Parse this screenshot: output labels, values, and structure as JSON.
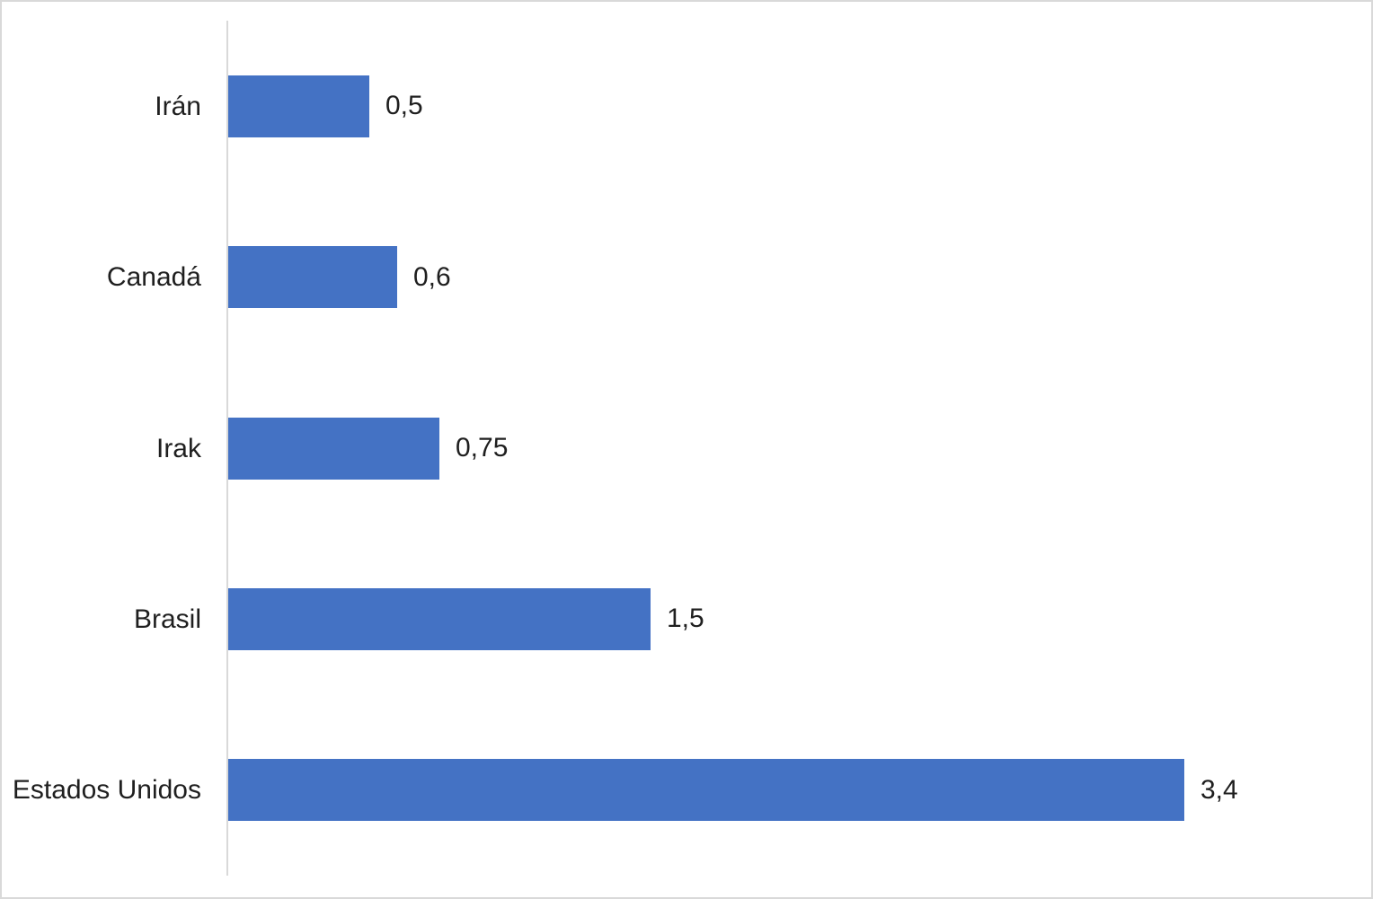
{
  "chart_data": {
    "type": "bar",
    "orientation": "horizontal",
    "title": "",
    "xlabel": "",
    "ylabel": "",
    "categories": [
      "Irán",
      "Canadá",
      "Irak",
      "Brasil",
      "Estados Unidos"
    ],
    "values": [
      0.5,
      0.6,
      0.75,
      1.5,
      3.4
    ],
    "value_labels": [
      "0,5",
      "0,6",
      "0,75",
      "1,5",
      "3,4"
    ],
    "xlim": [
      0,
      4
    ],
    "grid": false,
    "legend": false,
    "bar_color": "#4472C4",
    "axis_line_color": "#D9D9D9",
    "text_color": "#1f1f1f",
    "frame_border_color": "#D9D9D9",
    "background_color": "#FFFFFF"
  }
}
